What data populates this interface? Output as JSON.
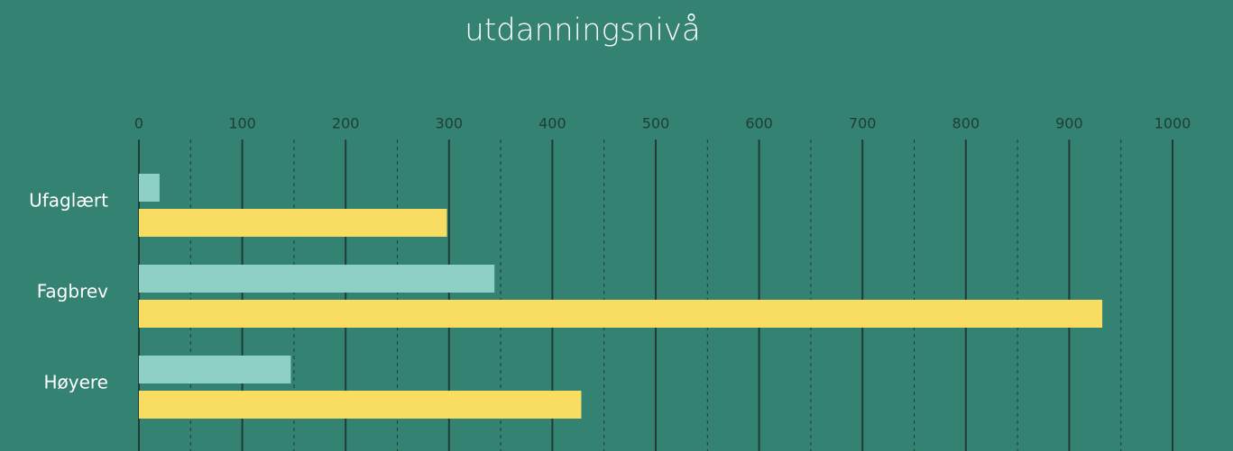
{
  "chart_data": {
    "type": "barh",
    "title": "utdanningsnivå",
    "categories": [
      "Ufaglært",
      "Fagbrev",
      "Høyere"
    ],
    "series": [
      {
        "color": "#8fd0c6",
        "values": [
          20,
          344,
          147
        ]
      },
      {
        "color": "#f9dd63",
        "values": [
          298,
          932,
          428
        ]
      }
    ],
    "xlim": [
      0,
      1000
    ],
    "xticks": [
      0,
      100,
      200,
      300,
      400,
      500,
      600,
      700,
      800,
      900,
      1000
    ],
    "minor_xticks": [
      50,
      150,
      250,
      350,
      450,
      550,
      650,
      750,
      850,
      950
    ],
    "grid": true
  }
}
